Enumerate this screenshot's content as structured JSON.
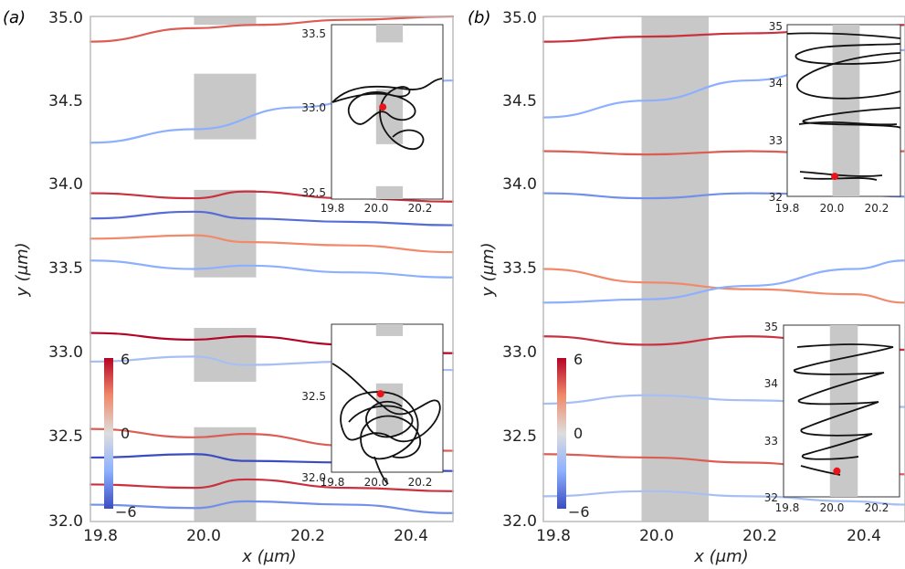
{
  "figure": {
    "panels": [
      {
        "label": "(a)",
        "xlabel": "x (μm)",
        "ylabel": "y (μm)",
        "xticks": [
          "19.8",
          "20.0",
          "20.2",
          "20.4"
        ],
        "yticks": [
          "32.0",
          "32.5",
          "33.0",
          "33.5",
          "34.0",
          "34.5",
          "35.0"
        ],
        "xlim": [
          19.8,
          20.5
        ],
        "ylim": [
          32.0,
          35.0
        ],
        "colorbar": {
          "ticks": [
            "6",
            "0",
            "−6"
          ],
          "range": [
            -6,
            6
          ],
          "colormap": "coolwarm"
        },
        "obstacles": [
          {
            "x": [
              20.0,
              20.12
            ],
            "y": [
              34.95,
              35.0
            ]
          },
          {
            "x": [
              20.0,
              20.12
            ],
            "y": [
              34.27,
              34.66
            ]
          },
          {
            "x": [
              20.0,
              20.12
            ],
            "y": [
              33.45,
              33.97
            ]
          },
          {
            "x": [
              20.0,
              20.12
            ],
            "y": [
              32.83,
              33.15
            ]
          },
          {
            "x": [
              20.0,
              20.12
            ],
            "y": [
              32.0,
              32.56
            ]
          }
        ],
        "insets": [
          {
            "xticks": [
              "19.8",
              "20.0",
              "20.2"
            ],
            "yticks": [
              "32.5",
              "33.0",
              "33.5"
            ],
            "xlim": [
              19.8,
              20.3
            ],
            "ylim": [
              32.47,
              33.55
            ],
            "obstacles": [
              {
                "x": [
                  20.0,
                  20.12
                ],
                "y": [
                  33.44,
                  33.55
                ]
              },
              {
                "x": [
                  20.0,
                  20.12
                ],
                "y": [
                  32.81,
                  33.15
                ]
              },
              {
                "x": [
                  20.0,
                  20.12
                ],
                "y": [
                  32.47,
                  32.55
                ]
              }
            ],
            "marker": {
              "x": 20.03,
              "y": 33.04
            }
          },
          {
            "xticks": [
              "19.8",
              "20.0",
              "20.2"
            ],
            "yticks": [
              "32.0",
              "32.5"
            ],
            "xlim": [
              19.8,
              20.3
            ],
            "ylim": [
              31.85,
              32.85
            ],
            "obstacles": [
              {
                "x": [
                  20.0,
                  20.12
                ],
                "y": [
                  32.77,
                  32.85
                ]
              },
              {
                "x": [
                  20.0,
                  20.12
                ],
                "y": [
                  32.1,
                  32.45
                ]
              }
            ],
            "marker": {
              "x": 20.02,
              "y": 32.38
            }
          }
        ]
      },
      {
        "label": "(b)",
        "xlabel": "x (μm)",
        "ylabel": "y (μm)",
        "xticks": [
          "19.8",
          "20.0",
          "20.2",
          "20.4"
        ],
        "yticks": [
          "32.0",
          "32.5",
          "33.0",
          "33.5",
          "34.0",
          "34.5",
          "35.0"
        ],
        "xlim": [
          19.8,
          20.5
        ],
        "ylim": [
          32.0,
          35.0
        ],
        "colorbar": {
          "ticks": [
            "6",
            "0",
            "−6"
          ],
          "range": [
            -6,
            6
          ],
          "colormap": "coolwarm"
        },
        "obstacles": [
          {
            "x": [
              19.99,
              20.12
            ],
            "y": [
              32.0,
              35.0
            ]
          }
        ],
        "insets": [
          {
            "xticks": [
              "19.8",
              "20.0",
              "20.2"
            ],
            "yticks": [
              "32",
              "33",
              "34",
              "35"
            ],
            "xlim": [
              19.8,
              20.3
            ],
            "ylim": [
              32.0,
              35.0
            ],
            "obstacles": [
              {
                "x": [
                  20.0,
                  20.12
                ],
                "y": [
                  32.0,
                  35.0
                ]
              }
            ],
            "marker": {
              "x": 20.01,
              "y": 32.35
            }
          },
          {
            "xticks": [
              "19.8",
              "20.0",
              "20.2"
            ],
            "yticks": [
              "32",
              "33",
              "34",
              "35"
            ],
            "xlim": [
              19.8,
              20.3
            ],
            "ylim": [
              32.0,
              35.0
            ],
            "obstacles": [
              {
                "x": [
                  20.0,
                  20.12
                ],
                "y": [
                  32.0,
                  35.0
                ]
              }
            ],
            "marker": {
              "x": 20.03,
              "y": 32.45
            }
          }
        ]
      }
    ]
  },
  "chart_data": [
    {
      "type": "line",
      "panel": "(a)",
      "xlabel": "x (μm)",
      "ylabel": "y (μm)",
      "xlim": [
        19.8,
        20.5
      ],
      "ylim": [
        32.0,
        35.0
      ],
      "colorbar_range": [
        -6,
        6
      ],
      "series": [
        {
          "x": [
            19.8,
            20.0,
            20.12,
            20.3,
            20.5
          ],
          "y": [
            34.85,
            34.93,
            34.95,
            34.98,
            35.0
          ],
          "c": 4
        },
        {
          "x": [
            19.8,
            20.0,
            20.2,
            20.4,
            20.5
          ],
          "y": [
            34.25,
            34.33,
            34.46,
            34.58,
            34.62
          ],
          "c": -3
        },
        {
          "x": [
            19.8,
            20.0,
            20.1,
            20.3,
            20.5
          ],
          "y": [
            33.95,
            33.92,
            33.96,
            33.92,
            33.9
          ],
          "c": 5
        },
        {
          "x": [
            19.8,
            20.0,
            20.1,
            20.3,
            20.5
          ],
          "y": [
            33.8,
            33.84,
            33.8,
            33.78,
            33.76
          ],
          "c": -5
        },
        {
          "x": [
            19.8,
            20.0,
            20.1,
            20.3,
            20.5
          ],
          "y": [
            33.68,
            33.7,
            33.66,
            33.64,
            33.6
          ],
          "c": 3
        },
        {
          "x": [
            19.8,
            20.0,
            20.1,
            20.3,
            20.5
          ],
          "y": [
            33.55,
            33.5,
            33.52,
            33.48,
            33.45
          ],
          "c": -3
        },
        {
          "x": [
            19.8,
            20.0,
            20.1,
            20.3,
            20.5
          ],
          "y": [
            33.12,
            33.08,
            33.1,
            33.05,
            33.0
          ],
          "c": 6
        },
        {
          "x": [
            19.8,
            20.0,
            20.1,
            20.3,
            20.5
          ],
          "y": [
            32.95,
            32.98,
            32.93,
            32.95,
            32.9
          ],
          "c": -2
        },
        {
          "x": [
            19.8,
            20.0,
            20.1,
            20.3,
            20.5
          ],
          "y": [
            32.55,
            32.5,
            32.52,
            32.45,
            32.42
          ],
          "c": 4
        },
        {
          "x": [
            19.8,
            20.0,
            20.1,
            20.3,
            20.5
          ],
          "y": [
            32.38,
            32.4,
            32.36,
            32.35,
            32.3
          ],
          "c": -6
        },
        {
          "x": [
            19.8,
            20.0,
            20.1,
            20.3,
            20.5
          ],
          "y": [
            32.22,
            32.2,
            32.25,
            32.2,
            32.18
          ],
          "c": 5
        },
        {
          "x": [
            19.8,
            20.0,
            20.1,
            20.3,
            20.5
          ],
          "y": [
            32.1,
            32.08,
            32.12,
            32.1,
            32.05
          ],
          "c": -4
        }
      ]
    },
    {
      "type": "line",
      "panel": "(b)",
      "xlabel": "x (μm)",
      "ylabel": "y (μm)",
      "xlim": [
        19.8,
        20.5
      ],
      "ylim": [
        32.0,
        35.0
      ],
      "colorbar_range": [
        -6,
        6
      ],
      "series": [
        {
          "x": [
            19.8,
            20.0,
            20.2,
            20.4,
            20.5
          ],
          "y": [
            34.85,
            34.88,
            34.9,
            34.93,
            34.95
          ],
          "c": 5
        },
        {
          "x": [
            19.8,
            20.0,
            20.2,
            20.4,
            20.5
          ],
          "y": [
            34.4,
            34.5,
            34.62,
            34.75,
            34.8
          ],
          "c": -3
        },
        {
          "x": [
            19.8,
            20.0,
            20.2,
            20.4,
            20.5
          ],
          "y": [
            34.2,
            34.18,
            34.2,
            34.18,
            34.2
          ],
          "c": 4
        },
        {
          "x": [
            19.8,
            20.0,
            20.2,
            20.4,
            20.5
          ],
          "y": [
            33.95,
            33.92,
            33.95,
            33.94,
            33.93
          ],
          "c": -4
        },
        {
          "x": [
            19.8,
            20.0,
            20.2,
            20.4,
            20.5
          ],
          "y": [
            33.5,
            33.42,
            33.38,
            33.35,
            33.3
          ],
          "c": 3
        },
        {
          "x": [
            19.8,
            20.0,
            20.2,
            20.4,
            20.5
          ],
          "y": [
            33.3,
            33.32,
            33.4,
            33.5,
            33.55
          ],
          "c": -3
        },
        {
          "x": [
            19.8,
            20.0,
            20.2,
            20.4,
            20.5
          ],
          "y": [
            33.1,
            33.05,
            33.1,
            33.05,
            33.02
          ],
          "c": 5
        },
        {
          "x": [
            19.8,
            20.0,
            20.2,
            20.4,
            20.5
          ],
          "y": [
            32.7,
            32.75,
            32.72,
            32.7,
            32.68
          ],
          "c": -2
        },
        {
          "x": [
            19.8,
            20.0,
            20.2,
            20.4,
            20.5
          ],
          "y": [
            32.4,
            32.38,
            32.35,
            32.3,
            32.28
          ],
          "c": 4
        },
        {
          "x": [
            19.8,
            20.0,
            20.2,
            20.4,
            20.5
          ],
          "y": [
            32.15,
            32.18,
            32.15,
            32.12,
            32.1
          ],
          "c": -2
        }
      ]
    }
  ]
}
